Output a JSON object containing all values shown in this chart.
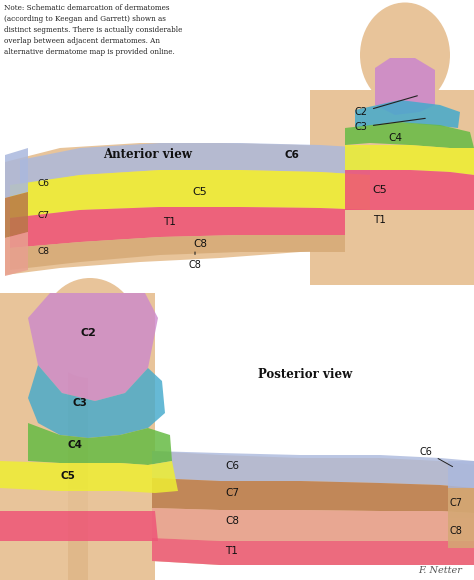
{
  "note_text": "Note: Schematic demarcation of dermatomes\n(according to Keegan and Garrett) shown as\ndistinct segments. There is actually considerable\noverlap between adjacent dermatomes. An\nalternative dermatome map is provided online.",
  "anterior_label": "Anterior view",
  "posterior_label": "Posterior view",
  "bg_color": "#f8f5f0",
  "skin_light": "#e8c49a",
  "skin_mid": "#d4a874",
  "skin_dark": "#c49060",
  "colors": {
    "C2": "#cc88cc",
    "C3": "#44aacc",
    "C4": "#66bb44",
    "C5": "#eeee33",
    "C6": "#aab8dd",
    "C7": "#b87848",
    "C8": "#e8a090",
    "T1": "#ee5577"
  },
  "signature": "F. Netter"
}
